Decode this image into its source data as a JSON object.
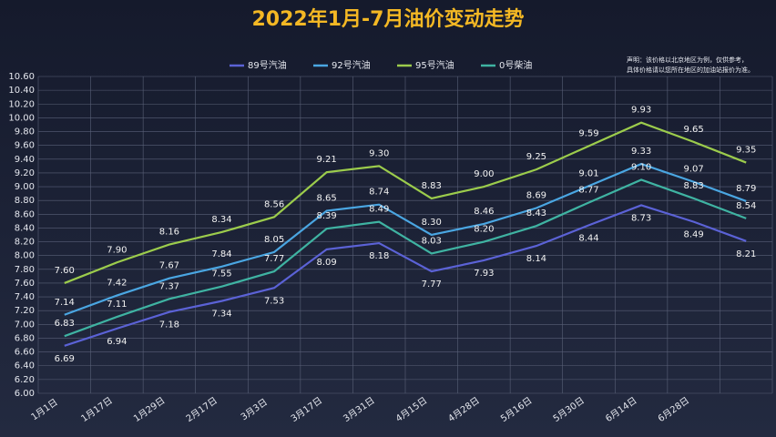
{
  "chart_data": {
    "type": "line",
    "title": "2022年1月-7月油价变动走势",
    "notes": [
      "声明：该价格以北京地区为例，仅供参考，",
      "具体价格请以您所在地区的加油站报价为准。"
    ],
    "categories": [
      "1月1日",
      "1月17日",
      "1月29日",
      "2月17日",
      "3月3日",
      "3月17日",
      "3月31日",
      "4月15日",
      "4月28日",
      "5月16日",
      "5月30日",
      "6月14日",
      "6月28日",
      null
    ],
    "series": [
      {
        "name": "89号汽油",
        "color": "#5b62d6",
        "values": [
          6.69,
          6.94,
          7.18,
          7.34,
          7.53,
          8.09,
          8.18,
          7.77,
          7.93,
          8.14,
          8.44,
          8.73,
          8.49,
          8.21
        ],
        "value_labels": [
          "6.69",
          "6.94",
          "7.18",
          "7.34",
          "7.53",
          "8.09",
          "8.18",
          "7.77",
          "7.93",
          "8.14",
          "8.44",
          "8.73",
          "8.49",
          "8.21"
        ]
      },
      {
        "name": "92号汽油",
        "color": "#4aa6e2",
        "values": [
          7.14,
          7.42,
          7.67,
          7.84,
          8.05,
          8.65,
          8.74,
          8.3,
          8.46,
          8.69,
          9.01,
          9.33,
          9.07,
          8.79
        ],
        "value_labels": [
          "7.14",
          "7.42",
          "7.67",
          "7.84",
          "8.05",
          "8.65",
          "8.74",
          "8.30",
          "8.46",
          "8.69",
          "9.01",
          "9.33",
          "9.07",
          "8.79"
        ]
      },
      {
        "name": "95号汽油",
        "color": "#9ccc4c",
        "values": [
          7.6,
          7.9,
          8.16,
          8.34,
          8.56,
          9.21,
          9.3,
          8.83,
          9.0,
          9.25,
          9.59,
          9.93,
          9.65,
          9.35
        ],
        "value_labels": [
          "7.60",
          "7.90",
          "8.16",
          "8.34",
          "8.56",
          "9.21",
          "9.30",
          "8.83",
          "9.00",
          "9.25",
          "9.59",
          "9.93",
          "9.65",
          "9.35"
        ]
      },
      {
        "name": "0号柴油",
        "color": "#3fb3a2",
        "values": [
          6.83,
          7.11,
          7.37,
          7.55,
          7.77,
          8.39,
          8.49,
          8.03,
          8.2,
          8.43,
          8.77,
          9.1,
          8.83,
          8.54
        ],
        "value_labels": [
          "6.83",
          "7.11",
          "7.37",
          "7.55",
          "7.77",
          "8.39",
          "8.49",
          "8.03",
          "8.20",
          "8.43",
          "8.77",
          "9.10",
          "8.83",
          "8.54"
        ]
      }
    ],
    "ylim": [
      6.0,
      10.6
    ],
    "yticks": [
      {
        "value": 6.0,
        "label": "6.00"
      },
      {
        "value": 6.2,
        "label": "6.20"
      },
      {
        "value": 6.4,
        "label": "6.40"
      },
      {
        "value": 6.6,
        "label": "6.60"
      },
      {
        "value": 6.8,
        "label": "6.80"
      },
      {
        "value": 7.0,
        "label": "7.00"
      },
      {
        "value": 7.2,
        "label": "7.20"
      },
      {
        "value": 7.4,
        "label": "7.40"
      },
      {
        "value": 7.6,
        "label": "7.60"
      },
      {
        "value": 7.8,
        "label": "7.80"
      },
      {
        "value": 8.0,
        "label": "8.00"
      },
      {
        "value": 8.2,
        "label": "8.20"
      },
      {
        "value": 8.4,
        "label": "8.40"
      },
      {
        "value": 8.6,
        "label": "8.60"
      },
      {
        "value": 8.8,
        "label": "8.80"
      },
      {
        "value": 9.0,
        "label": "9.00"
      },
      {
        "value": 9.2,
        "label": "9.20"
      },
      {
        "value": 9.4,
        "label": "9.40"
      },
      {
        "value": 9.6,
        "label": "9.60"
      },
      {
        "value": 9.8,
        "label": "9.80"
      },
      {
        "value": 10.0,
        "label": "10.00"
      },
      {
        "value": 10.2,
        "label": "10.20"
      },
      {
        "value": 10.4,
        "label": "10.40"
      },
      {
        "value": 10.6,
        "label": "10.60"
      }
    ],
    "grid": true,
    "legend": "top"
  }
}
